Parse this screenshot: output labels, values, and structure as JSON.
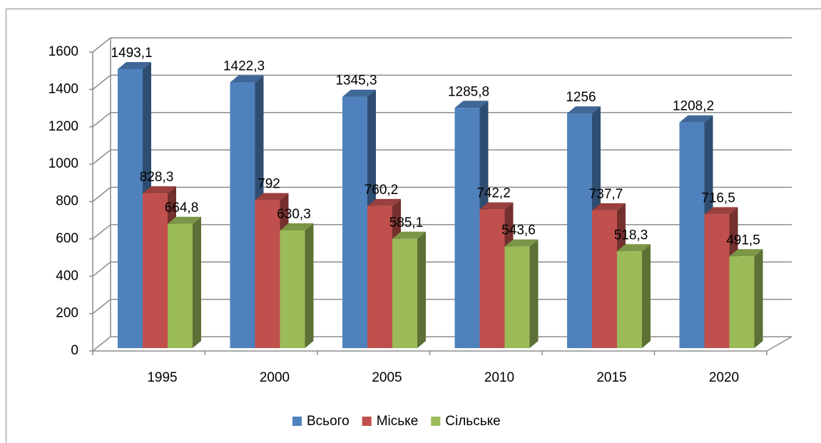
{
  "chart_data": {
    "type": "bar3d",
    "categories": [
      "1995",
      "2000",
      "2005",
      "2010",
      "2015",
      "2020"
    ],
    "series": [
      {
        "name": "Всього",
        "color": "#4f81bd",
        "values": [
          1493.1,
          1422.3,
          1345.3,
          1285.8,
          1256,
          1208.2
        ],
        "value_labels": [
          "1493,1",
          "1422,3",
          "1345,3",
          "1285,8",
          "1256",
          "1208,2"
        ]
      },
      {
        "name": "Міське",
        "color": "#c0504d",
        "values": [
          828.3,
          792,
          760.2,
          742.2,
          737.7,
          716.5
        ],
        "value_labels": [
          "828,3",
          "792",
          "760,2",
          "742,2",
          "737,7",
          "716,5"
        ]
      },
      {
        "name": "Сільське",
        "color": "#9bbb59",
        "values": [
          664.8,
          630.3,
          585.1,
          543.6,
          518.3,
          491.5
        ],
        "value_labels": [
          "664,8",
          "630,3",
          "585,1",
          "543,6",
          "518,3",
          "491,5"
        ]
      }
    ],
    "ylim": [
      0,
      1600
    ],
    "yticks": [
      0,
      200,
      400,
      600,
      800,
      1000,
      1200,
      1400,
      1600
    ],
    "grid": true,
    "legend": "bottom"
  }
}
